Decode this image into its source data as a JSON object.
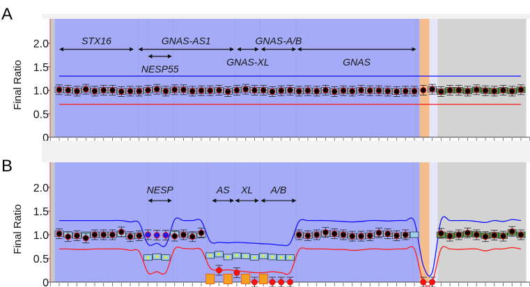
{
  "chart_data": [
    {
      "type": "scatter",
      "panel_label": "A",
      "ylabel": "Final Ratio",
      "ylim": [
        0,
        2.5
      ],
      "yticks": [
        "0",
        "0.5",
        "1.0",
        "1.5",
        "2.0"
      ],
      "ytick_values": [
        0,
        0.5,
        1.0,
        1.5,
        2.0
      ],
      "probe_count": 53,
      "regions": [
        {
          "from": -1,
          "to": -0.5,
          "color": "#c8c8c8"
        },
        {
          "from": -0.5,
          "to": 40.6,
          "color": "#a6abf7"
        },
        {
          "from": 40.6,
          "to": 41.7,
          "color": "#f5bd8e"
        },
        {
          "from": 41.7,
          "to": 42.6,
          "color": "#e6e6fb"
        },
        {
          "from": 42.6,
          "to": 52.6,
          "color": "#d3d3d3"
        }
      ],
      "dividers": [
        8.9,
        10,
        12.8,
        19.8,
        22.6,
        26.7,
        40.2
      ],
      "upper_threshold": 1.3,
      "lower_threshold": 0.7,
      "ratios": [
        1.01,
        1.0,
        0.98,
        1.02,
        0.98,
        1.0,
        1.0,
        0.97,
        0.98,
        0.98,
        1.0,
        1.02,
        0.98,
        1.01,
        1.01,
        0.98,
        0.99,
        0.99,
        1.0,
        0.97,
        1.0,
        1.02,
        1.0,
        1.0,
        0.97,
        0.99,
        1.0,
        0.98,
        0.99,
        0.98,
        1.0,
        0.97,
        0.99,
        0.98,
        1.0,
        0.99,
        0.99,
        0.98,
        0.97,
        0.98,
        0.98,
        1.0,
        1.02,
        0.97,
        1.0,
        1.0,
        0.98,
        1.01,
        0.99,
        0.98,
        1.0,
        0.98,
        1.01
      ],
      "box_colors": [
        "blue",
        "blue",
        "blue",
        "blue",
        "blue",
        "blue",
        "blue",
        "blue",
        "blue",
        "blue",
        "blue",
        "blue",
        "blue",
        "blue",
        "blue",
        "blue",
        "blue",
        "blue",
        "blue",
        "blue",
        "blue",
        "blue",
        "blue",
        "blue",
        "blue",
        "blue",
        "blue",
        "blue",
        "blue",
        "blue",
        "blue",
        "blue",
        "blue",
        "blue",
        "blue",
        "blue",
        "blue",
        "blue",
        "blue",
        "blue",
        "blue",
        "none",
        "blue",
        "green",
        "green",
        "green",
        "green",
        "green",
        "green",
        "green",
        "green",
        "green",
        "green"
      ],
      "annotations": [
        {
          "text": "STX16",
          "from": 0,
          "to": 8.4,
          "arrow_y": 1.87,
          "label_y": 2.05
        },
        {
          "text": "GNAS-AS1",
          "from": 8.9,
          "to": 19.7,
          "arrow_y": 1.87,
          "label_y": 2.05
        },
        {
          "text": "NESP55",
          "from": 10,
          "to": 12.7,
          "arrow_y": 1.72,
          "label_y": 1.45
        },
        {
          "text": "GNAS-XL",
          "from": 20,
          "to": 22.5,
          "arrow_y": 1.87,
          "label_y": 1.6
        },
        {
          "text": "GNAS-A/B",
          "from": 22.7,
          "to": 26.7,
          "arrow_y": 1.87,
          "label_y": 2.05
        },
        {
          "text": "GNAS",
          "from": 26.8,
          "to": 40.2,
          "arrow_y": 1.87,
          "label_y": 1.6
        }
      ]
    },
    {
      "type": "scatter",
      "panel_label": "B",
      "ylabel": "Final Ratio",
      "ylim": [
        0,
        2.5
      ],
      "yticks": [
        "0",
        "0.5",
        "1.0",
        "1.5",
        "2.0"
      ],
      "ytick_values": [
        0,
        0.5,
        1.0,
        1.5,
        2.0
      ],
      "probe_count": 53,
      "regions": [
        {
          "from": -1,
          "to": -0.5,
          "color": "#c8c8c8"
        },
        {
          "from": -0.5,
          "to": 40.6,
          "color": "#a6abf7"
        },
        {
          "from": 40.6,
          "to": 41.7,
          "color": "#f5bd8e"
        },
        {
          "from": 41.7,
          "to": 42.6,
          "color": "#e6e6fb"
        },
        {
          "from": 42.6,
          "to": 52.6,
          "color": "#d3d3d3"
        }
      ],
      "dividers": [
        10,
        12.8,
        16.7,
        19.8,
        22.6,
        26.7,
        39.8
      ],
      "box_ratios": [
        1.02,
        1.0,
        0.98,
        1.0,
        1.0,
        1.0,
        1.0,
        1.02,
        0.97,
        0.98,
        0.52,
        0.54,
        0.52,
        1.03,
        1.0,
        0.98,
        1.01,
        0.56,
        0.59,
        0.53,
        0.56,
        0.55,
        0.52,
        0.55,
        0.53,
        0.52,
        0.52,
        1.0,
        0.98,
        1.0,
        1.03,
        1.02,
        1.0,
        0.97,
        0.97,
        0.98,
        1.02,
        1.02,
        0.98,
        0.99,
        1.0,
        null,
        null,
        1.0,
        0.98,
        1.0,
        1.02,
        1.01,
        0.98,
        0.99,
        0.98,
        1.05,
        1.0
      ],
      "point_ratios": [
        1.02,
        0.96,
        0.98,
        0.93,
        1.0,
        1.0,
        1.0,
        1.06,
        0.96,
        0.98,
        1.0,
        0.99,
        0.99,
        0.97,
        1.0,
        0.96,
        1.04,
        null,
        0.25,
        null,
        0.2,
        null,
        0,
        null,
        0,
        0,
        0,
        1.0,
        0.98,
        1.0,
        1.05,
        1.02,
        1.0,
        0.97,
        0.97,
        0.98,
        1.04,
        1.02,
        0.98,
        1.0,
        null,
        0,
        0,
        1.03,
        0.97,
        1.0,
        1.04,
        1.0,
        0.96,
        0.99,
        0.97,
        1.07,
        1.0
      ],
      "point_colors": [
        "black",
        "black",
        "black",
        "black",
        "black",
        "black",
        "black",
        "black",
        "black",
        "black",
        "blue",
        "blue",
        "blue",
        "black",
        "black",
        "black",
        "black",
        "orange",
        "red",
        "orange",
        "red",
        "orange",
        "red",
        "orange",
        "red",
        "red",
        "red",
        "black",
        "black",
        "black",
        "black",
        "black",
        "black",
        "black",
        "black",
        "black",
        "black",
        "black",
        "black",
        "black",
        "black",
        "red",
        "red",
        "black",
        "black",
        "black",
        "black",
        "black",
        "black",
        "black",
        "black",
        "black",
        "black"
      ],
      "box_colors": [
        "blue",
        "blue",
        "blue",
        "blue",
        "blue",
        "blue",
        "blue",
        "blue",
        "blue",
        "blue",
        "blue",
        "blue",
        "blue",
        "blue",
        "blue",
        "blue",
        "blue",
        "blue",
        "blue",
        "blue",
        "blue",
        "blue",
        "blue",
        "blue",
        "blue",
        "blue",
        "blue",
        "blue",
        "blue",
        "blue",
        "blue",
        "blue",
        "blue",
        "blue",
        "blue",
        "blue",
        "blue",
        "blue",
        "blue",
        "blue",
        "blue",
        "none",
        "none",
        "green",
        "green",
        "green",
        "green",
        "green",
        "green",
        "green",
        "green",
        "green",
        "green"
      ],
      "upper_threshold": [
        1.3,
        1.3,
        1.3,
        1.3,
        1.3,
        1.3,
        1.3,
        1.3,
        1.27,
        1.25,
        0.8,
        0.82,
        0.78,
        1.32,
        1.3,
        1.3,
        1.29,
        0.86,
        0.84,
        0.83,
        0.84,
        0.83,
        0.82,
        0.81,
        0.8,
        0.78,
        0.82,
        1.28,
        1.3,
        1.3,
        1.3,
        1.29,
        1.28,
        1.27,
        1.28,
        1.3,
        1.3,
        1.29,
        1.3,
        1.3,
        1.28,
        0.35,
        0.2,
        1.3,
        1.3,
        1.3,
        1.3,
        1.28,
        1.26,
        1.3,
        1.28,
        1.32,
        1.3
      ],
      "lower_threshold": [
        0.7,
        0.7,
        0.69,
        0.69,
        0.7,
        0.7,
        0.7,
        0.7,
        0.67,
        0.65,
        0.2,
        0.22,
        0.2,
        0.7,
        0.71,
        0.7,
        0.68,
        0.3,
        0.25,
        0.26,
        0.24,
        0.22,
        0.2,
        0.2,
        0.22,
        0.2,
        0.2,
        0.68,
        0.7,
        0.7,
        0.7,
        0.69,
        0.69,
        0.67,
        0.68,
        0.7,
        0.7,
        0.69,
        0.7,
        0.7,
        0.7,
        0,
        0,
        0.7,
        0.7,
        0.69,
        0.7,
        0.7,
        0.66,
        0.7,
        0.7,
        0.73,
        0.7
      ],
      "annotations": [
        {
          "text": "NESP",
          "from": 10,
          "to": 12.7,
          "arrow_y": 1.72,
          "label_y": 1.95
        },
        {
          "text": "AS",
          "from": 17.2,
          "to": 19.7,
          "arrow_y": 1.72,
          "label_y": 1.95
        },
        {
          "text": "XL",
          "from": 19.8,
          "to": 22.5,
          "arrow_y": 1.72,
          "label_y": 1.95
        },
        {
          "text": "A/B",
          "from": 22.7,
          "to": 26.7,
          "arrow_y": 1.72,
          "label_y": 1.95
        }
      ]
    }
  ]
}
